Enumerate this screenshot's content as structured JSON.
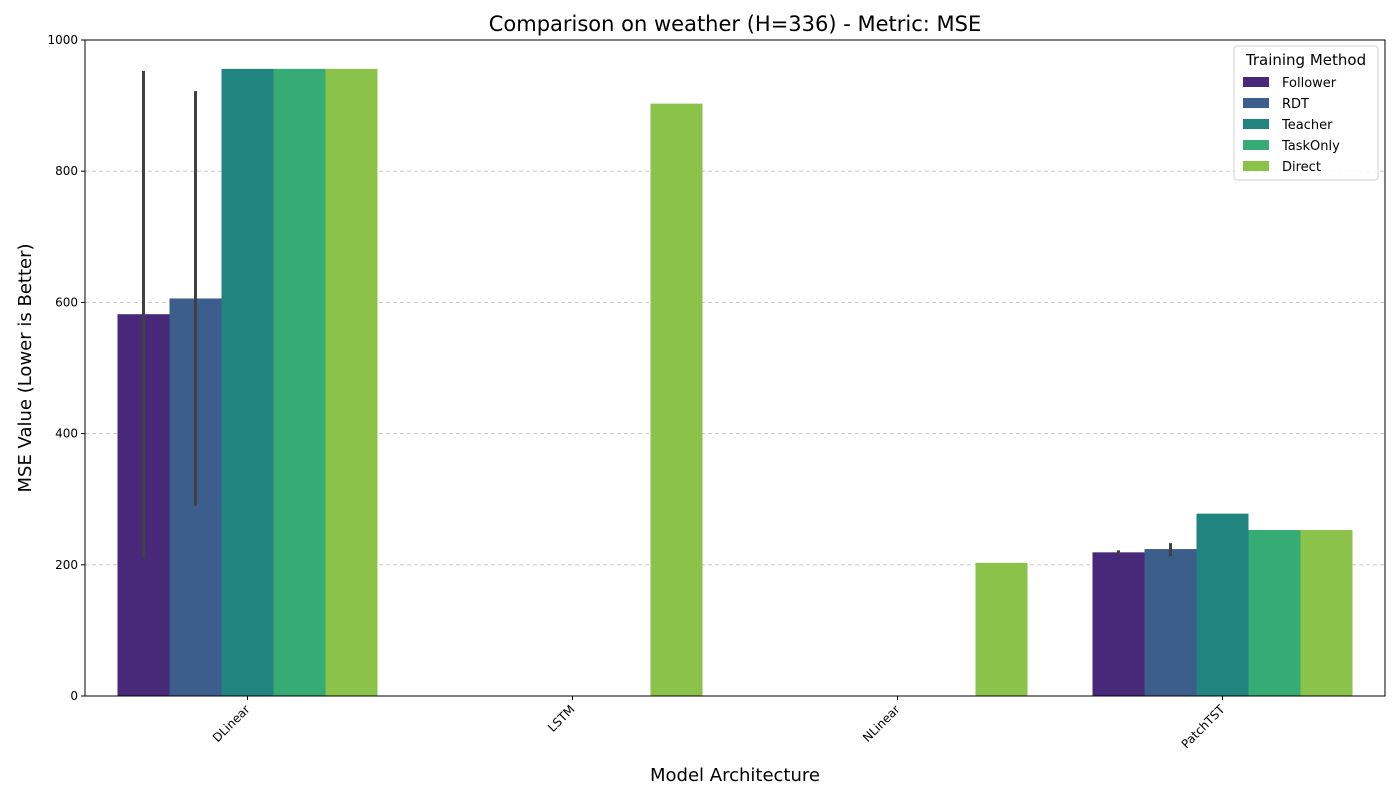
{
  "chart_data": {
    "type": "bar",
    "title": "Comparison on weather (H=336) - Metric: MSE",
    "xlabel": "Model Architecture",
    "ylabel": "MSE Value (Lower is Better)",
    "ylim": [
      0,
      1000
    ],
    "yticks": [
      0,
      200,
      400,
      600,
      800,
      1000
    ],
    "grid": "horizontal-dashed",
    "categories": [
      "DLinear",
      "LSTM",
      "NLinear",
      "PatchTST"
    ],
    "legend": {
      "title": "Training Method",
      "placement": "top-right"
    },
    "series": [
      {
        "name": "Follower",
        "color": "#482878",
        "values": [
          582,
          null,
          null,
          219
        ],
        "errors": [
          [
            210,
            953
          ],
          null,
          null,
          [
            216,
            222
          ]
        ]
      },
      {
        "name": "RDT",
        "color": "#3b5e8c",
        "values": [
          606,
          null,
          null,
          224
        ],
        "errors": [
          [
            290,
            922
          ],
          null,
          null,
          [
            213,
            233
          ]
        ]
      },
      {
        "name": "Teacher",
        "color": "#21847e",
        "values": [
          956,
          null,
          null,
          278
        ],
        "errors": [
          null,
          null,
          null,
          null
        ]
      },
      {
        "name": "TaskOnly",
        "color": "#36ab73",
        "values": [
          956,
          null,
          null,
          253
        ],
        "errors": [
          null,
          null,
          null,
          null
        ]
      },
      {
        "name": "Direct",
        "color": "#8bc34a",
        "values": [
          956,
          903,
          203,
          253
        ],
        "errors": [
          null,
          null,
          null,
          null
        ]
      }
    ]
  }
}
